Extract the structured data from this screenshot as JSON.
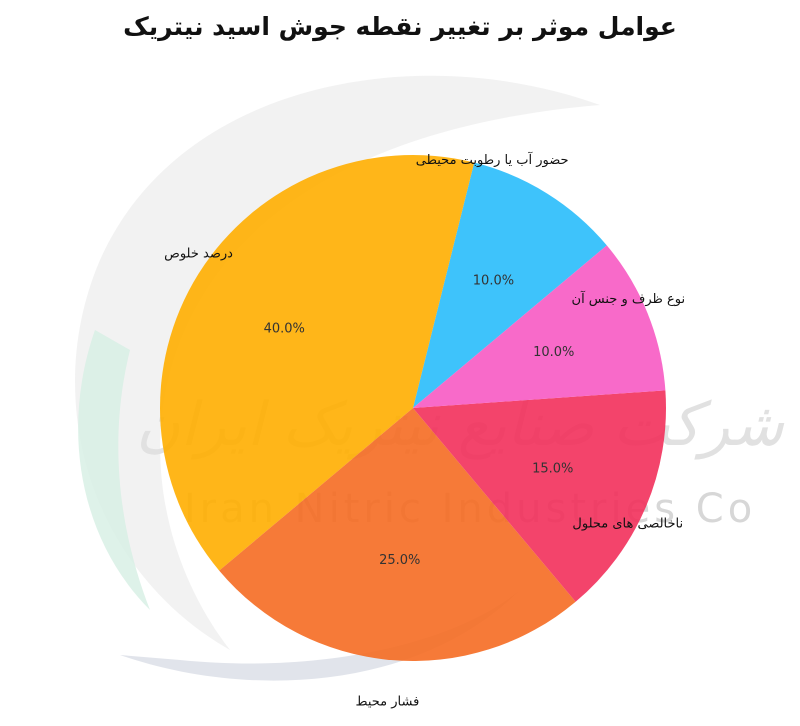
{
  "watermark": {
    "name_en": "Iran Nitric Industries Co",
    "name_fa": "شرکت صنایع نیتریک ایران"
  },
  "chart_data": {
    "type": "pie",
    "title": "عوامل موثر بر تغییر نقطه جوش اسید نیتریک",
    "start_angle_deg": 40,
    "direction": "counterclockwise",
    "slices": [
      {
        "label": "حضور آب یا رطوبت محیطی",
        "value": 10.0,
        "display": "10.0%",
        "color": "#29BDFB"
      },
      {
        "label": "درصد خلوص",
        "value": 40.0,
        "display": "40.0%",
        "color": "#FFAE00"
      },
      {
        "label": "فشار محیط",
        "value": 25.0,
        "display": "25.0%",
        "color": "#F56B22"
      },
      {
        "label": "ناخالصی های محلول",
        "value": 15.0,
        "display": "15.0%",
        "color": "#F2305B"
      },
      {
        "label": "نوع ظرف و جنس آن",
        "value": 10.0,
        "display": "10.0%",
        "color": "#F75AC3"
      }
    ]
  }
}
